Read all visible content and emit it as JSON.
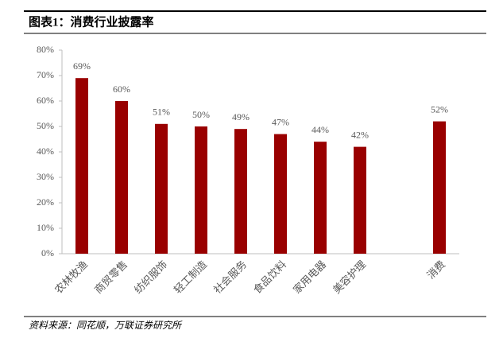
{
  "chart_data": {
    "type": "bar",
    "title": "图表1：消费行业披露率",
    "source": "资料来源：同花顺，万联证券研究所",
    "categories": [
      "农林牧渔",
      "商贸零售",
      "纺织服饰",
      "轻工制造",
      "社会服务",
      "食品饮料",
      "家用电器",
      "美容护理",
      null,
      "消费"
    ],
    "values": [
      69,
      60,
      51,
      50,
      49,
      47,
      44,
      42,
      null,
      52
    ],
    "value_labels": [
      "69%",
      "60%",
      "51%",
      "50%",
      "49%",
      "47%",
      "44%",
      "42%",
      null,
      "52%"
    ],
    "color": "#990000",
    "ylim": [
      0,
      80
    ],
    "yticks": [
      {
        "value": 0,
        "label": "0%"
      },
      {
        "value": 10,
        "label": "10%"
      },
      {
        "value": 20,
        "label": "20%"
      },
      {
        "value": 30,
        "label": "30%"
      },
      {
        "value": 40,
        "label": "40%"
      },
      {
        "value": 50,
        "label": "50%"
      },
      {
        "value": 60,
        "label": "60%"
      },
      {
        "value": 70,
        "label": "70%"
      },
      {
        "value": 80,
        "label": "80%"
      }
    ],
    "grid": false
  }
}
